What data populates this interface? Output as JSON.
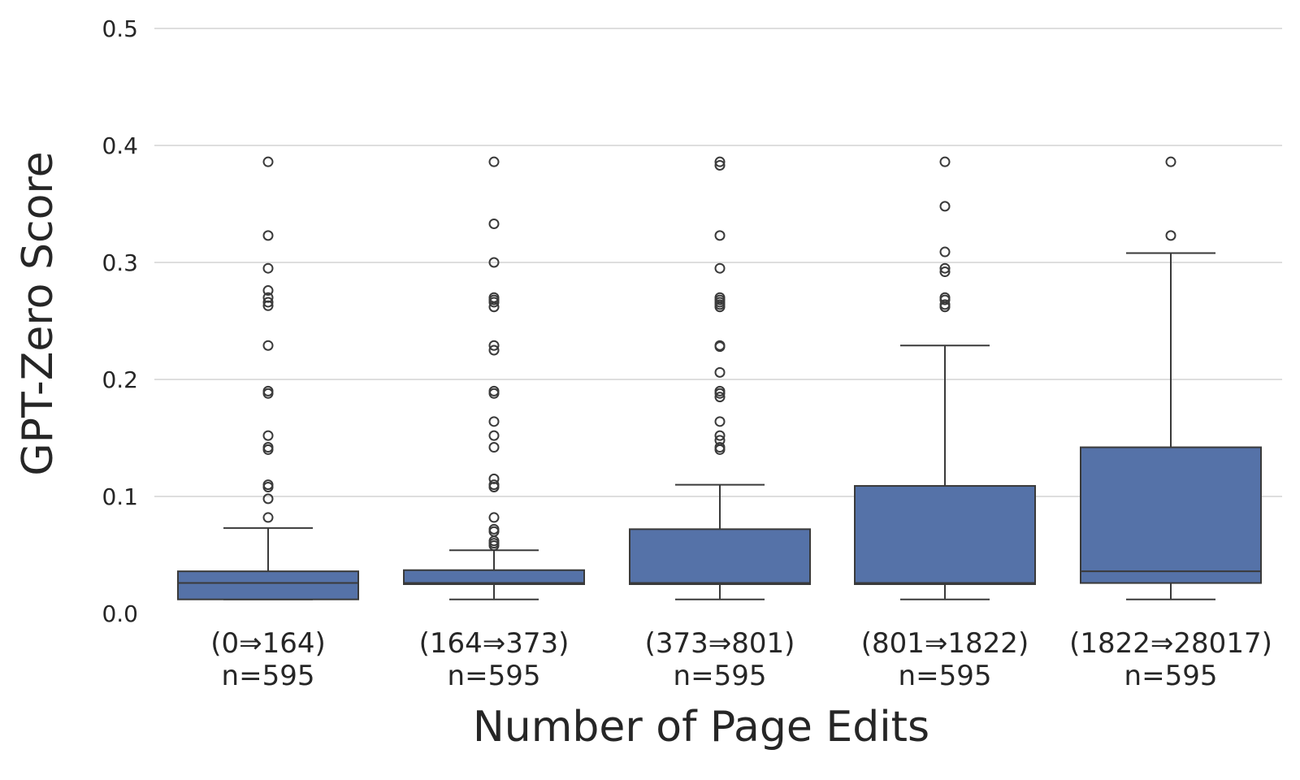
{
  "chart_data": {
    "type": "box",
    "title": "",
    "xlabel": "Number of Page Edits",
    "ylabel": "GPT-Zero Score",
    "ylim": [
      0.0,
      0.5
    ],
    "yticks": [
      "0.0",
      "0.1",
      "0.2",
      "0.3",
      "0.4",
      "0.5"
    ],
    "grid": "horizontal",
    "box_color": "#5572a8",
    "edge_color": "#3a3a3a",
    "categories": [
      {
        "label": "(0⇒164)",
        "n": "n=595",
        "whisker_low": 0.012,
        "q1": 0.012,
        "median": 0.026,
        "q3": 0.036,
        "whisker_high": 0.073,
        "outliers": [
          0.082,
          0.098,
          0.108,
          0.11,
          0.14,
          0.142,
          0.152,
          0.188,
          0.19,
          0.229,
          0.263,
          0.266,
          0.27,
          0.276,
          0.295,
          0.323,
          0.386
        ]
      },
      {
        "label": "(164⇒373)",
        "n": "n=595",
        "whisker_low": 0.012,
        "q1": 0.025,
        "median": 0.026,
        "q3": 0.037,
        "whisker_high": 0.054,
        "outliers": [
          0.058,
          0.06,
          0.062,
          0.07,
          0.072,
          0.082,
          0.108,
          0.11,
          0.115,
          0.142,
          0.152,
          0.164,
          0.188,
          0.19,
          0.225,
          0.229,
          0.262,
          0.266,
          0.268,
          0.27,
          0.3,
          0.333,
          0.386
        ]
      },
      {
        "label": "(373⇒801)",
        "n": "n=595",
        "whisker_low": 0.012,
        "q1": 0.025,
        "median": 0.026,
        "q3": 0.072,
        "whisker_high": 0.11,
        "outliers": [
          0.14,
          0.142,
          0.148,
          0.152,
          0.164,
          0.185,
          0.188,
          0.19,
          0.206,
          0.228,
          0.229,
          0.262,
          0.264,
          0.266,
          0.268,
          0.27,
          0.295,
          0.323,
          0.383,
          0.386
        ]
      },
      {
        "label": "(801⇒1822)",
        "n": "n=595",
        "whisker_low": 0.012,
        "q1": 0.025,
        "median": 0.026,
        "q3": 0.109,
        "whisker_high": 0.229,
        "outliers": [
          0.262,
          0.264,
          0.268,
          0.27,
          0.292,
          0.295,
          0.309,
          0.348,
          0.386
        ]
      },
      {
        "label": "(1822⇒28017)",
        "n": "n=595",
        "whisker_low": 0.012,
        "q1": 0.026,
        "median": 0.036,
        "q3": 0.142,
        "whisker_high": 0.308,
        "outliers": [
          0.323,
          0.386
        ]
      }
    ]
  }
}
